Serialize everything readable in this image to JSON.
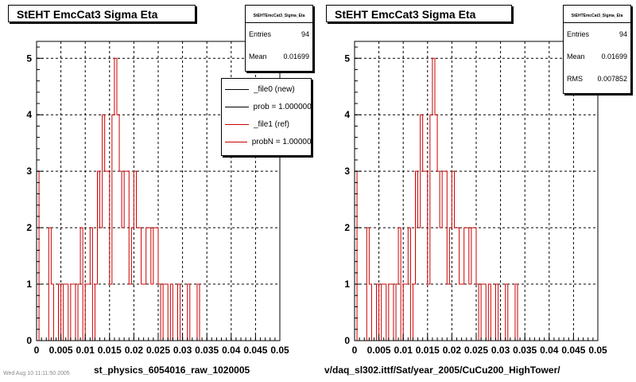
{
  "panels": [
    {
      "title": "StEHT EmcCat3 Sigma Eta",
      "stats": {
        "name": "StEHTEmcCat3_Sigma_Eta",
        "rows": [
          {
            "label": "Entries",
            "value": "94"
          },
          {
            "label": "Mean",
            "value": "0.01699"
          }
        ]
      },
      "legend": [
        {
          "label": "_file0 (new)",
          "color": "#000000"
        },
        {
          "label": "prob = 1.000000",
          "color": "#000000"
        },
        {
          "label": "_file1 (ref)",
          "color": "#cc0000"
        },
        {
          "label": "probN = 1.000000",
          "color": "#cc0000"
        }
      ],
      "xtitle": "st_physics_6054016_raw_1020005"
    },
    {
      "title": "StEHT EmcCat3 Sigma Eta",
      "stats": {
        "name": "StEHTEmcCat3_Sigma_Eta",
        "rows": [
          {
            "label": "Entries",
            "value": "94"
          },
          {
            "label": "Mean",
            "value": "0.01699"
          },
          {
            "label": "RMS",
            "value": "0.007852"
          }
        ]
      },
      "xtitle": "v/daq_sl302.ittf/Sat/year_2005/CuCu200_HighTower/"
    }
  ],
  "footer": "Wed Aug 10 11:11:50 2005",
  "chart_data": {
    "type": "bar",
    "style": "step-histogram",
    "xlim": [
      0,
      0.05
    ],
    "ylim": [
      0,
      5.3
    ],
    "grid": true,
    "xticks": [
      "0",
      "0.005",
      "0.01",
      "0.015",
      "0.02",
      "0.025",
      "0.03",
      "0.035",
      "0.04",
      "0.045",
      "0.05"
    ],
    "yticks": [
      "0",
      "1",
      "2",
      "3",
      "4",
      "5"
    ],
    "bin_width": 0.0005,
    "line_color": "#cc0000",
    "bins": [
      [
        0.0,
        3
      ],
      [
        0.0005,
        0
      ],
      [
        0.001,
        0
      ],
      [
        0.0015,
        0
      ],
      [
        0.002,
        0
      ],
      [
        0.0025,
        2
      ],
      [
        0.003,
        1
      ],
      [
        0.0035,
        0
      ],
      [
        0.004,
        0
      ],
      [
        0.0045,
        1
      ],
      [
        0.005,
        0
      ],
      [
        0.0055,
        1
      ],
      [
        0.006,
        1
      ],
      [
        0.0065,
        0
      ],
      [
        0.007,
        1
      ],
      [
        0.0075,
        1
      ],
      [
        0.008,
        0
      ],
      [
        0.0085,
        1
      ],
      [
        0.009,
        2
      ],
      [
        0.0095,
        0
      ],
      [
        0.01,
        1
      ],
      [
        0.0105,
        1
      ],
      [
        0.011,
        2
      ],
      [
        0.0115,
        0
      ],
      [
        0.012,
        1
      ],
      [
        0.0125,
        3
      ],
      [
        0.013,
        2
      ],
      [
        0.0135,
        4
      ],
      [
        0.014,
        3
      ],
      [
        0.0145,
        3
      ],
      [
        0.015,
        1
      ],
      [
        0.0155,
        4
      ],
      [
        0.016,
        5
      ],
      [
        0.0165,
        4
      ],
      [
        0.017,
        3
      ],
      [
        0.0175,
        2
      ],
      [
        0.018,
        3
      ],
      [
        0.0185,
        3
      ],
      [
        0.019,
        1
      ],
      [
        0.0195,
        2
      ],
      [
        0.02,
        3
      ],
      [
        0.0205,
        2
      ],
      [
        0.021,
        2
      ],
      [
        0.0215,
        1
      ],
      [
        0.022,
        1
      ],
      [
        0.0225,
        2
      ],
      [
        0.023,
        2
      ],
      [
        0.0235,
        1
      ],
      [
        0.024,
        2
      ],
      [
        0.0245,
        2
      ],
      [
        0.025,
        1
      ],
      [
        0.0255,
        0
      ],
      [
        0.026,
        1
      ],
      [
        0.0265,
        1
      ],
      [
        0.027,
        0
      ],
      [
        0.0275,
        1
      ],
      [
        0.028,
        0
      ],
      [
        0.0285,
        0
      ],
      [
        0.029,
        1
      ],
      [
        0.0295,
        0
      ],
      [
        0.03,
        0
      ],
      [
        0.0305,
        0
      ],
      [
        0.031,
        1
      ],
      [
        0.0315,
        0
      ],
      [
        0.032,
        0
      ],
      [
        0.0325,
        0
      ],
      [
        0.033,
        1
      ],
      [
        0.0335,
        0
      ],
      [
        0.034,
        0
      ],
      [
        0.0345,
        0
      ]
    ]
  }
}
